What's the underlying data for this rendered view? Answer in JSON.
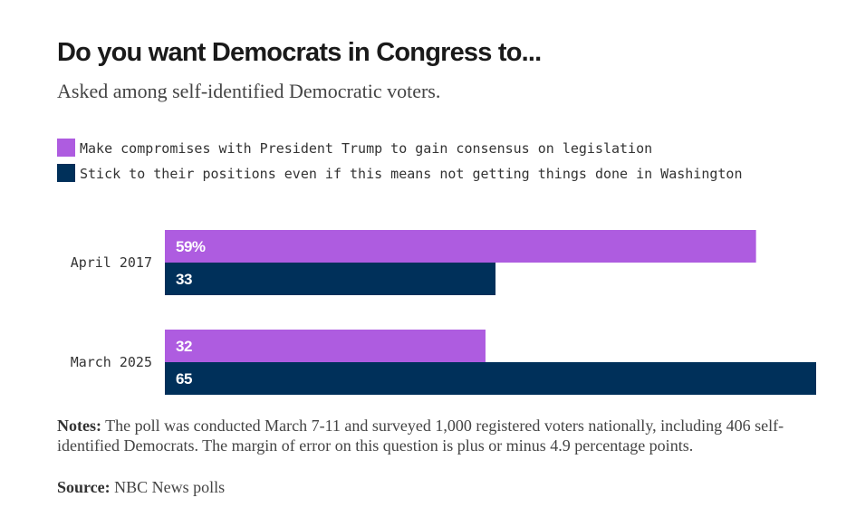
{
  "header": {
    "title": "Do you want Democrats in Congress to...",
    "subtitle": "Asked among self-identified Democratic voters."
  },
  "footer": {
    "notes_label": "Notes:",
    "notes_text": " The poll was conducted March 7-11 and surveyed 1,000 registered voters nationally, including 406 self-identified Democrats. The margin of error on this question is plus or minus 4.9 percentage points.",
    "source_label": "Source:",
    "source_text": " NBC News polls"
  },
  "colors": {
    "compromise": "#ae5ce0",
    "stick": "#00305a"
  },
  "chart_data": {
    "type": "bar",
    "orientation": "horizontal",
    "title": "Do you want Democrats in Congress to...",
    "subtitle": "Asked among self-identified Democratic voters.",
    "categories": [
      "April 2017",
      "March 2025"
    ],
    "series": [
      {
        "name": "Make compromises with President Trump to gain consensus on legislation",
        "values": [
          59,
          32
        ],
        "labels": [
          "59%",
          "32"
        ],
        "color": "#ae5ce0"
      },
      {
        "name": "Stick to their positions even if this means not getting things done in Washington",
        "values": [
          33,
          65
        ],
        "labels": [
          "33",
          "65"
        ],
        "color": "#00305a"
      }
    ],
    "xlim": [
      0,
      65
    ],
    "grid": false,
    "legend_position": "top-left"
  }
}
